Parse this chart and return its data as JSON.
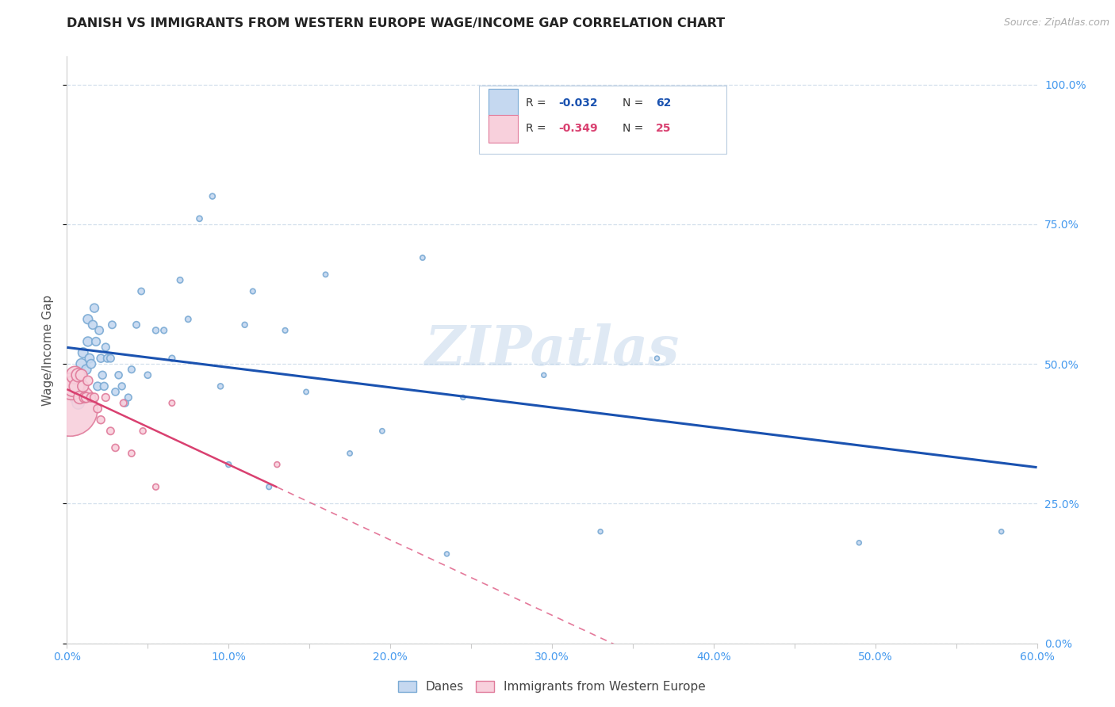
{
  "title": "DANISH VS IMMIGRANTS FROM WESTERN EUROPE WAGE/INCOME GAP CORRELATION CHART",
  "source": "Source: ZipAtlas.com",
  "ylabel": "Wage/Income Gap",
  "watermark": "ZIPatlas",
  "r_danes": -0.032,
  "r_immigrants": -0.349,
  "n_danes": 62,
  "n_immigrants": 25,
  "xlim": [
    0.0,
    0.6
  ],
  "ylim": [
    0.0,
    1.05
  ],
  "ytick_labels_right": [
    "0.0%",
    "25.0%",
    "50.0%",
    "75.0%",
    "100.0%"
  ],
  "ytick_positions": [
    0.0,
    0.25,
    0.5,
    0.75,
    1.0
  ],
  "title_color": "#222222",
  "source_color": "#aaaaaa",
  "axis_color": "#cccccc",
  "grid_color": "#c8d8e8",
  "danes_color": "#c5d8f0",
  "danes_edge": "#7aaad4",
  "immigrants_color": "#f8d0dc",
  "immigrants_edge": "#e07a9a",
  "trend_danes_color": "#1a52b0",
  "trend_immigrants_color": "#d94070",
  "ylabel_color": "#555555",
  "ytick_color": "#4499ee",
  "xtick_color": "#4499ee",
  "danes_x": [
    0.003,
    0.004,
    0.005,
    0.006,
    0.007,
    0.008,
    0.009,
    0.01,
    0.01,
    0.011,
    0.012,
    0.013,
    0.013,
    0.014,
    0.015,
    0.016,
    0.017,
    0.018,
    0.019,
    0.02,
    0.021,
    0.022,
    0.023,
    0.024,
    0.025,
    0.027,
    0.028,
    0.03,
    0.032,
    0.034,
    0.036,
    0.038,
    0.04,
    0.043,
    0.046,
    0.05,
    0.055,
    0.06,
    0.065,
    0.07,
    0.075,
    0.082,
    0.09,
    0.095,
    0.1,
    0.11,
    0.115,
    0.125,
    0.135,
    0.148,
    0.16,
    0.175,
    0.195,
    0.22,
    0.235,
    0.245,
    0.295,
    0.315,
    0.33,
    0.365,
    0.49,
    0.578
  ],
  "danes_y": [
    0.47,
    0.45,
    0.46,
    0.44,
    0.43,
    0.47,
    0.5,
    0.46,
    0.52,
    0.44,
    0.49,
    0.54,
    0.58,
    0.51,
    0.5,
    0.57,
    0.6,
    0.54,
    0.46,
    0.56,
    0.51,
    0.48,
    0.46,
    0.53,
    0.51,
    0.51,
    0.57,
    0.45,
    0.48,
    0.46,
    0.43,
    0.44,
    0.49,
    0.57,
    0.63,
    0.48,
    0.56,
    0.56,
    0.51,
    0.65,
    0.58,
    0.76,
    0.8,
    0.46,
    0.32,
    0.57,
    0.63,
    0.28,
    0.56,
    0.45,
    0.66,
    0.34,
    0.38,
    0.69,
    0.16,
    0.44,
    0.48,
    0.88,
    0.2,
    0.51,
    0.18,
    0.2
  ],
  "danes_size": [
    200,
    180,
    160,
    150,
    120,
    100,
    90,
    85,
    80,
    80,
    75,
    72,
    70,
    68,
    65,
    62,
    60,
    58,
    56,
    55,
    52,
    50,
    50,
    48,
    48,
    46,
    45,
    44,
    42,
    40,
    40,
    38,
    38,
    36,
    35,
    34,
    32,
    30,
    30,
    28,
    28,
    26,
    25,
    25,
    24,
    24,
    22,
    22,
    22,
    20,
    20,
    20,
    20,
    20,
    18,
    18,
    18,
    18,
    18,
    18,
    18,
    18
  ],
  "immigrants_x": [
    0.002,
    0.003,
    0.004,
    0.005,
    0.006,
    0.007,
    0.008,
    0.009,
    0.01,
    0.011,
    0.012,
    0.013,
    0.015,
    0.017,
    0.019,
    0.021,
    0.024,
    0.027,
    0.03,
    0.035,
    0.04,
    0.047,
    0.055,
    0.065,
    0.13
  ],
  "immigrants_y": [
    0.42,
    0.46,
    0.46,
    0.48,
    0.46,
    0.48,
    0.44,
    0.48,
    0.46,
    0.44,
    0.44,
    0.47,
    0.44,
    0.44,
    0.42,
    0.4,
    0.44,
    0.38,
    0.35,
    0.43,
    0.34,
    0.38,
    0.28,
    0.43,
    0.32
  ],
  "immigrants_size": [
    2500,
    600,
    350,
    250,
    180,
    150,
    130,
    110,
    100,
    90,
    80,
    75,
    65,
    60,
    55,
    50,
    48,
    45,
    42,
    38,
    35,
    32,
    30,
    28,
    25
  ],
  "imm_trend_solid_xmax": 0.13
}
